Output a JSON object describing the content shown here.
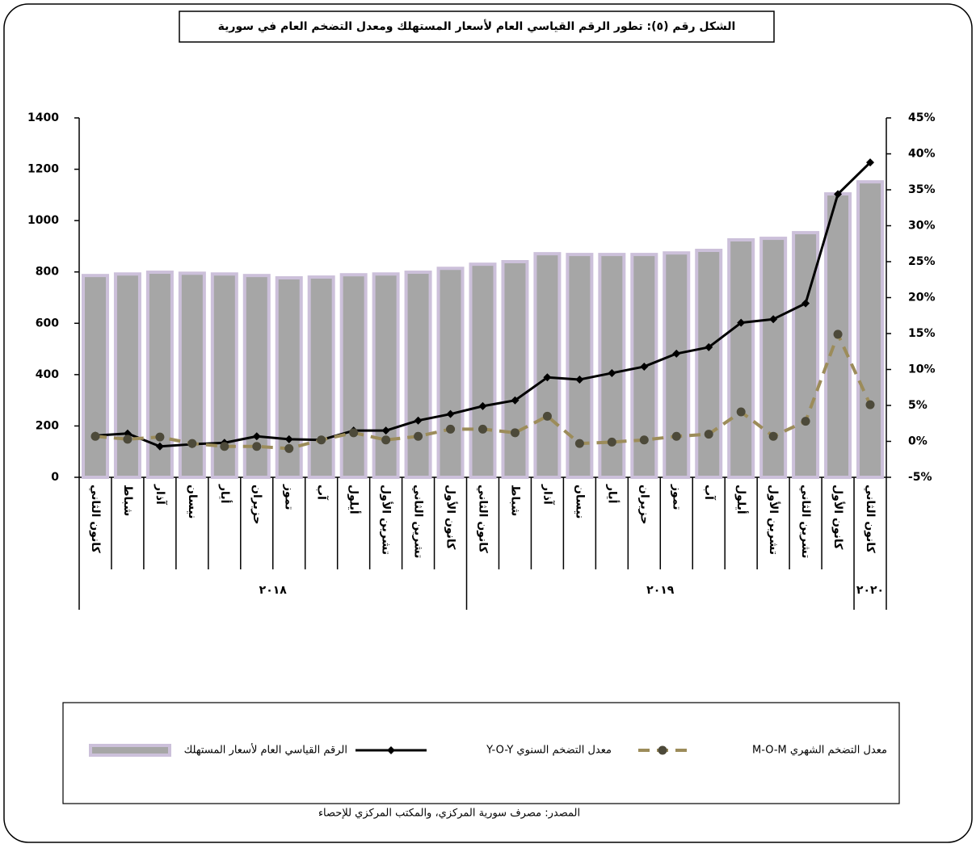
{
  "chart_data": {
    "type": "bar",
    "title": "الشكل رقم (٥): تطور الرقم القياسي العام لأسعار المستهلك ومعدل التضخم العام في سورية",
    "source": "المصدر: مصرف سورية المركزي، والمكتب المركزي للإحصاء",
    "categories": [
      "كانون الثاني",
      "شباط",
      "آذار",
      "نيسان",
      "أيار",
      "حزيران",
      "تموز",
      "آب",
      "أيلول",
      "تشرين الأول",
      "تشرين الثاني",
      "كانون الأول",
      "كانون الثاني",
      "شباط",
      "آذار",
      "نيسان",
      "أيار",
      "حزيران",
      "تموز",
      "آب",
      "أيلول",
      "تشرين الأول",
      "تشرين الثاني",
      "كانون الأول",
      "كانون الثاني"
    ],
    "x_group_labels": [
      "٢٠١٨",
      null,
      null,
      null,
      null,
      null,
      null,
      null,
      null,
      null,
      null,
      null,
      "٢٠١٩",
      null,
      null,
      null,
      null,
      null,
      null,
      null,
      null,
      null,
      null,
      null,
      "٢٠٢٠"
    ],
    "ylim": [
      0,
      1400
    ],
    "yticks": [
      0,
      200,
      400,
      600,
      800,
      1000,
      1200,
      1400
    ],
    "y2lim": [
      -5,
      45
    ],
    "y2ticks": [
      {
        "value": -5,
        "label": "-5%"
      },
      {
        "value": 0,
        "label": "0%"
      },
      {
        "value": 5,
        "label": "5%"
      },
      {
        "value": 10,
        "label": "10%"
      },
      {
        "value": 15,
        "label": "15%"
      },
      {
        "value": 20,
        "label": "20%"
      },
      {
        "value": 25,
        "label": "25%"
      },
      {
        "value": 30,
        "label": "30%"
      },
      {
        "value": 35,
        "label": "35%"
      },
      {
        "value": 40,
        "label": "40%"
      },
      {
        "value": 45,
        "label": "45%"
      }
    ],
    "series": [
      {
        "name": "الرقم القياسي العام لأسعار المستهلك",
        "type": "bar",
        "color": "#a6a6a6",
        "edge_color": "#ccc0da",
        "values": [
          786,
          792,
          799,
          795,
          792,
          786,
          777,
          780,
          789,
          792,
          799,
          814,
          830,
          840,
          871,
          868,
          868,
          868,
          874,
          884,
          925,
          931,
          953,
          1104,
          1151
        ]
      },
      {
        "name": "معدل التضخم السنوي Y-O-Y",
        "type": "line",
        "axis": "y2",
        "color": "#000000",
        "marker": "diamond",
        "values": [
          0.8,
          1.1,
          -0.7,
          -0.4,
          -0.2,
          0.7,
          0.3,
          0.2,
          1.5,
          1.5,
          2.9,
          3.8,
          4.9,
          5.7,
          8.9,
          8.6,
          9.5,
          10.4,
          12.2,
          13.1,
          16.5,
          17.0,
          19.2,
          34.4,
          38.8
        ]
      },
      {
        "name": "معدل التضخم الشهري M-O-M",
        "type": "line",
        "axis": "y2",
        "color": "#9c8c5a",
        "marker_color": "#4d4a3a",
        "marker": "circle",
        "dashed": true,
        "values": [
          0.7,
          0.3,
          0.6,
          -0.3,
          -0.7,
          -0.7,
          -1.0,
          0.2,
          1.2,
          0.2,
          0.7,
          1.7,
          1.7,
          1.2,
          3.5,
          -0.3,
          -0.1,
          0.2,
          0.7,
          1.0,
          4.1,
          0.7,
          2.8,
          14.9,
          5.1
        ]
      }
    ]
  }
}
